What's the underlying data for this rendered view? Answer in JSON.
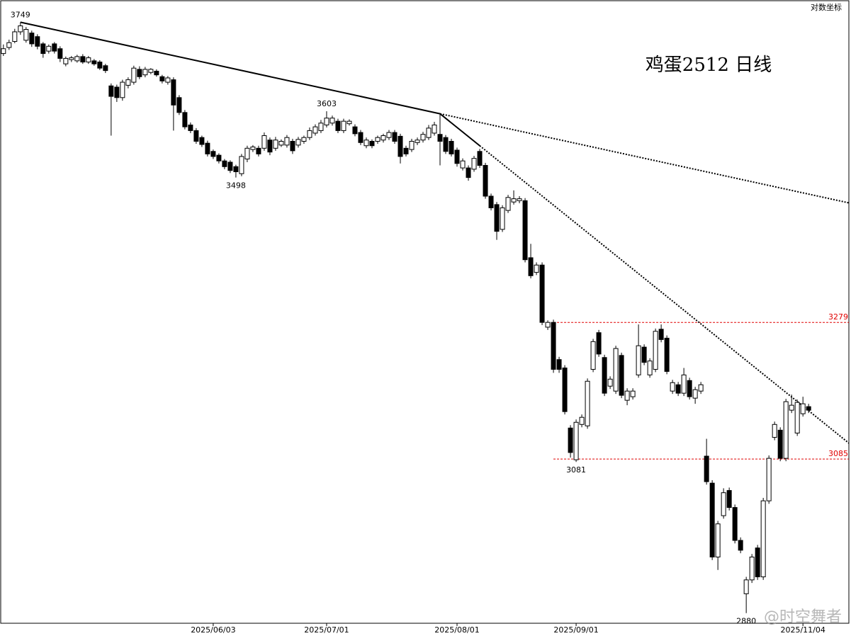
{
  "chart_data": {
    "type": "candlestick",
    "title": "鸡蛋2512 日线",
    "scale_label": "对数坐标",
    "watermark": "@时空舞者",
    "log_scale": true,
    "up_color": "#ffffff",
    "down_color": "#000000",
    "xlim": [
      -0.6,
      149.1
    ],
    "ylim": [
      2867,
      3784
    ],
    "xticks": [
      {
        "value": 37,
        "label": "2025/06/03"
      },
      {
        "value": 57,
        "label": "2025/07/01"
      },
      {
        "value": 80,
        "label": "2025/08/01"
      },
      {
        "value": 101,
        "label": "2025/09/01"
      },
      {
        "value": 141,
        "label": "2025/11/04"
      }
    ],
    "open": [
      3697,
      3707,
      3717,
      3733,
      3719,
      3731,
      3725,
      3713,
      3701,
      3713,
      3705,
      3680,
      3687,
      3685,
      3692,
      3683,
      3685,
      3683,
      3677,
      3644,
      3642,
      3625,
      3645,
      3650,
      3671,
      3662,
      3666,
      3668,
      3659,
      3650,
      3654,
      3625,
      3601,
      3581,
      3572,
      3561,
      3552,
      3539,
      3533,
      3524,
      3522,
      3515,
      3504,
      3527,
      3542,
      3544,
      3544,
      3557,
      3544,
      3549,
      3549,
      3555,
      3549,
      3555,
      3561,
      3568,
      3572,
      3581,
      3584,
      3587,
      3572,
      3583,
      3578,
      3569,
      3548,
      3555,
      3555,
      3557,
      3561,
      3569,
      3563,
      3544,
      3542,
      3553,
      3557,
      3561,
      3568,
      3566,
      3561,
      3555,
      3541,
      3513,
      3513,
      3511,
      3539,
      3517,
      3469,
      3456,
      3418,
      3447,
      3460,
      3462,
      3462,
      3375,
      3353,
      3364,
      3272,
      3279,
      3225,
      3213,
      3128,
      3084,
      3133,
      3131,
      3211,
      3264,
      3228,
      3187,
      3180,
      3231,
      3167,
      3172,
      3203,
      3243,
      3203,
      3211,
      3269,
      3256,
      3180,
      3189,
      3177,
      3195,
      3170,
      3180,
      3089,
      3052,
      2953,
      3008,
      3042,
      3019,
      2975,
      2905,
      2923,
      2965,
      2927,
      3028,
      3115,
      3125,
      3086,
      3153,
      3121,
      3148,
      3158
    ],
    "high": [
      3712,
      3720,
      3738,
      3749,
      3741,
      3735,
      3729,
      3716,
      3712,
      3716,
      3709,
      3692,
      3693,
      3695,
      3696,
      3693,
      3688,
      3686,
      3680,
      3648,
      3646,
      3654,
      3658,
      3677,
      3676,
      3675,
      3673,
      3671,
      3662,
      3660,
      3658,
      3629,
      3605,
      3585,
      3576,
      3564,
      3556,
      3542,
      3536,
      3527,
      3525,
      3518,
      3535,
      3548,
      3549,
      3548,
      3569,
      3561,
      3562,
      3558,
      3565,
      3559,
      3562,
      3564,
      3577,
      3582,
      3589,
      3603,
      3596,
      3591,
      3591,
      3590,
      3582,
      3573,
      3561,
      3558,
      3564,
      3567,
      3573,
      3573,
      3567,
      3548,
      3559,
      3561,
      3570,
      3581,
      3586,
      3599,
      3565,
      3559,
      3545,
      3528,
      3517,
      3532,
      3543,
      3521,
      3473,
      3460,
      3455,
      3471,
      3478,
      3469,
      3466,
      3396,
      3368,
      3368,
      3282,
      3283,
      3229,
      3217,
      3132,
      3140,
      3147,
      3198,
      3255,
      3268,
      3232,
      3201,
      3245,
      3235,
      3184,
      3184,
      3276,
      3247,
      3227,
      3270,
      3276,
      3260,
      3196,
      3193,
      3213,
      3199,
      3186,
      3193,
      3113,
      3056,
      3001,
      3045,
      3046,
      3023,
      2979,
      2927,
      2957,
      2969,
      3032,
      3090,
      3137,
      3129,
      3169,
      3175,
      3168,
      3172,
      3162
    ],
    "low": [
      3693,
      3703,
      3714,
      3728,
      3715,
      3708,
      3704,
      3690,
      3697,
      3697,
      3683,
      3676,
      3683,
      3682,
      3680,
      3680,
      3677,
      3670,
      3665,
      3564,
      3618,
      3620,
      3640,
      3646,
      3655,
      3658,
      3663,
      3659,
      3648,
      3646,
      3572,
      3597,
      3574,
      3568,
      3551,
      3546,
      3531,
      3527,
      3520,
      3511,
      3505,
      3498,
      3500,
      3522,
      3538,
      3531,
      3540,
      3533,
      3540,
      3546,
      3545,
      3535,
      3545,
      3551,
      3557,
      3564,
      3568,
      3577,
      3580,
      3568,
      3568,
      3580,
      3563,
      3549,
      3544,
      3544,
      3551,
      3553,
      3557,
      3551,
      3520,
      3531,
      3538,
      3549,
      3553,
      3557,
      3564,
      3517,
      3535,
      3531,
      3515,
      3509,
      3493,
      3507,
      3513,
      3465,
      3447,
      3402,
      3414,
      3443,
      3456,
      3458,
      3368,
      3344,
      3349,
      3275,
      3268,
      3206,
      3206,
      3147,
      3087,
      3081,
      3129,
      3127,
      3207,
      3229,
      3173,
      3183,
      3176,
      3170,
      3160,
      3168,
      3199,
      3217,
      3199,
      3207,
      3250,
      3204,
      3176,
      3173,
      3173,
      3168,
      3162,
      3176,
      3050,
      2949,
      2936,
      3004,
      3015,
      2971,
      2958,
      2880,
      2919,
      2923,
      2923,
      3024,
      3111,
      3082,
      3082,
      3149,
      3117,
      3144,
      3149
    ],
    "close": [
      3705,
      3715,
      3733,
      3743,
      3737,
      3713,
      3709,
      3697,
      3709,
      3701,
      3689,
      3689,
      3690,
      3692,
      3683,
      3690,
      3680,
      3673,
      3669,
      3627,
      3625,
      3650,
      3654,
      3673,
      3659,
      3671,
      3671,
      3662,
      3652,
      3657,
      3613,
      3601,
      3578,
      3572,
      3555,
      3550,
      3535,
      3531,
      3524,
      3515,
      3509,
      3507,
      3531,
      3544,
      3546,
      3535,
      3564,
      3538,
      3557,
      3555,
      3561,
      3540,
      3558,
      3561,
      3572,
      3578,
      3584,
      3592,
      3592,
      3572,
      3587,
      3587,
      3567,
      3553,
      3557,
      3548,
      3561,
      3564,
      3569,
      3555,
      3531,
      3535,
      3555,
      3557,
      3566,
      3576,
      3581,
      3555,
      3539,
      3535,
      3520,
      3524,
      3498,
      3528,
      3517,
      3469,
      3451,
      3415,
      3451,
      3467,
      3465,
      3465,
      3372,
      3348,
      3364,
      3279,
      3279,
      3211,
      3211,
      3151,
      3094,
      3136,
      3143,
      3194,
      3251,
      3233,
      3177,
      3197,
      3241,
      3174,
      3180,
      3180,
      3245,
      3221,
      3223,
      3266,
      3254,
      3208,
      3192,
      3177,
      3203,
      3172,
      3182,
      3189,
      3054,
      2953,
      2997,
      3039,
      3019,
      2975,
      2962,
      2923,
      2953,
      2927,
      3028,
      3086,
      3133,
      3086,
      3165,
      3160,
      3164,
      3162,
      3153
    ],
    "annotations": [
      {
        "index": 3,
        "value": 3749,
        "position": "above"
      },
      {
        "index": 57,
        "value": 3603,
        "position": "above"
      },
      {
        "index": 41,
        "value": 3498,
        "position": "below"
      },
      {
        "index": 101,
        "value": 3081,
        "position": "below"
      },
      {
        "index": 131,
        "value": 2880,
        "position": "below"
      }
    ],
    "hlines": [
      3279,
      3085
    ],
    "hline_color": "#e00000",
    "trendlines": [
      {
        "from": [
          3,
          3749
        ],
        "to": [
          77,
          3599
        ]
      },
      {
        "from": [
          77,
          3599
        ],
        "to": [
          84,
          3548
        ]
      }
    ]
  }
}
